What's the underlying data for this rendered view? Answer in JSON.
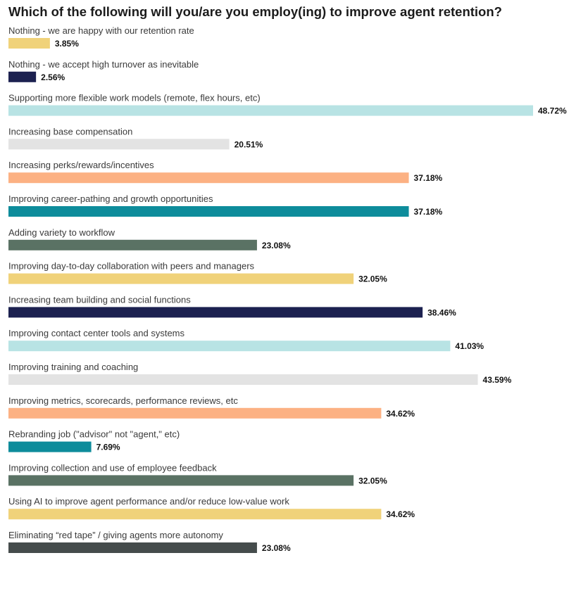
{
  "chart_data": {
    "type": "bar",
    "orientation": "horizontal",
    "title": "Which of the following will you/are you employ(ing) to improve agent retention?",
    "xlim": [
      0,
      48.72
    ],
    "grid": false,
    "categories": [
      "Nothing - we are happy with our retention rate",
      "Nothing - we accept high turnover as inevitable",
      "Supporting more flexible work models (remote, flex hours, etc)",
      "Increasing base compensation",
      "Increasing perks/rewards/incentives",
      "Improving career-pathing and growth opportunities",
      "Adding variety to workflow",
      "Improving day-to-day collaboration with peers and managers",
      "Increasing team building and social functions",
      "Improving contact center tools and systems",
      "Improving training and coaching",
      "Improving metrics, scorecards, performance reviews, etc",
      "Rebranding job (\"advisor\" not \"agent,\" etc)",
      "Improving collection and use of employee feedback",
      "Using AI to improve agent performance and/or reduce low-value work",
      "Eliminating “red tape” / giving agents more autonomy"
    ],
    "values": [
      3.85,
      2.56,
      48.72,
      20.51,
      37.18,
      37.18,
      23.08,
      32.05,
      38.46,
      41.03,
      43.59,
      34.62,
      7.69,
      32.05,
      34.62,
      23.08
    ],
    "value_labels": [
      "3.85%",
      "2.56%",
      "48.72%",
      "20.51%",
      "37.18%",
      "37.18%",
      "23.08%",
      "32.05%",
      "38.46%",
      "41.03%",
      "43.59%",
      "34.62%",
      "7.69%",
      "32.05%",
      "34.62%",
      "23.08%"
    ],
    "colors": [
      "#f0d27a",
      "#1c2150",
      "#b8e3e4",
      "#e3e3e3",
      "#fcb183",
      "#0d8c9b",
      "#5a7264",
      "#f0d27a",
      "#1c2150",
      "#b8e3e4",
      "#e3e3e3",
      "#fcb183",
      "#0d8c9b",
      "#5a7264",
      "#f0d27a",
      "#454c4c"
    ]
  }
}
